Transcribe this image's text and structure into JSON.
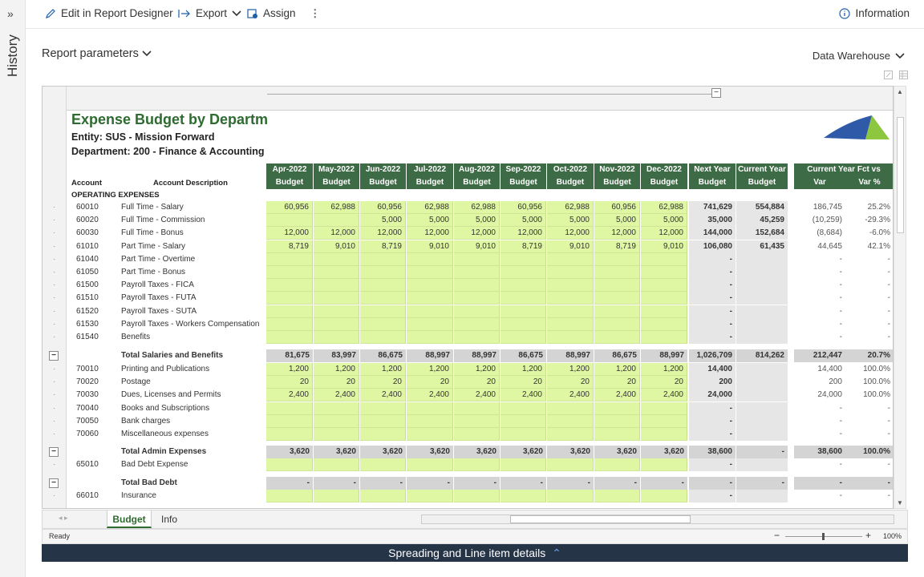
{
  "history": {
    "label": "History"
  },
  "toolbar": {
    "edit": "Edit in Report Designer",
    "export": "Export",
    "assign": "Assign",
    "information": "Information"
  },
  "params": {
    "label": "Report parameters"
  },
  "source": {
    "label": "Data Warehouse"
  },
  "report": {
    "title": "Expense Budget by Departmer",
    "entity": "Entity: SUS - Mission Forward",
    "department": "Department:  200 - Finance & Accounting",
    "months": [
      "Apr-2022",
      "May-2022",
      "Jun-2022",
      "Jul-2022",
      "Aug-2022",
      "Sep-2022",
      "Oct-2022",
      "Nov-2022",
      "Dec-2022"
    ],
    "sub_budget": "Budget",
    "next_year": "Next Year",
    "current_year": "Current Year",
    "fct_vs": "Current Year Fct vs Budget",
    "var": "Var",
    "varpct": "Var %",
    "account": "Account",
    "account_desc": "Account Description",
    "section": "OPERATING EXPENSES",
    "rows": [
      {
        "acct": "60010",
        "desc": "Full Time - Salary",
        "m": [
          "60,956",
          "62,988",
          "60,956",
          "62,988",
          "62,988",
          "60,956",
          "62,988",
          "60,956",
          "62,988"
        ],
        "ny": "741,629",
        "cy": "554,884",
        "v": "186,745",
        "vp": "25.2%"
      },
      {
        "acct": "60020",
        "desc": "Full Time - Commission",
        "m": [
          "",
          "",
          "5,000",
          "5,000",
          "5,000",
          "5,000",
          "5,000",
          "5,000",
          "5,000"
        ],
        "ny": "35,000",
        "cy": "45,259",
        "v": "(10,259)",
        "vp": "-29.3%"
      },
      {
        "acct": "60030",
        "desc": "Full Time - Bonus",
        "m": [
          "12,000",
          "12,000",
          "12,000",
          "12,000",
          "12,000",
          "12,000",
          "12,000",
          "12,000",
          "12,000"
        ],
        "ny": "144,000",
        "cy": "152,684",
        "v": "(8,684)",
        "vp": "-6.0%"
      },
      {
        "acct": "61010",
        "desc": "Part Time - Salary",
        "m": [
          "8,719",
          "9,010",
          "8,719",
          "9,010",
          "9,010",
          "8,719",
          "9,010",
          "8,719",
          "9,010"
        ],
        "ny": "106,080",
        "cy": "61,435",
        "v": "44,645",
        "vp": "42.1%"
      },
      {
        "acct": "61040",
        "desc": "Part Time - Overtime",
        "m": [
          "",
          "",
          "",
          "",
          "",
          "",
          "",
          "",
          ""
        ],
        "ny": "-",
        "cy": "",
        "v": "-",
        "vp": "-"
      },
      {
        "acct": "61050",
        "desc": "Part Time - Bonus",
        "m": [
          "",
          "",
          "",
          "",
          "",
          "",
          "",
          "",
          ""
        ],
        "ny": "-",
        "cy": "",
        "v": "-",
        "vp": "-"
      },
      {
        "acct": "61500",
        "desc": "Payroll Taxes - FICA",
        "m": [
          "",
          "",
          "",
          "",
          "",
          "",
          "",
          "",
          ""
        ],
        "ny": "-",
        "cy": "",
        "v": "-",
        "vp": "-"
      },
      {
        "acct": "61510",
        "desc": "Payroll Taxes - FUTA",
        "m": [
          "",
          "",
          "",
          "",
          "",
          "",
          "",
          "",
          ""
        ],
        "ny": "-",
        "cy": "",
        "v": "-",
        "vp": "-"
      },
      {
        "acct": "61520",
        "desc": "Payroll Taxes - SUTA",
        "m": [
          "",
          "",
          "",
          "",
          "",
          "",
          "",
          "",
          ""
        ],
        "ny": "-",
        "cy": "",
        "v": "-",
        "vp": "-"
      },
      {
        "acct": "61530",
        "desc": "Payroll Taxes - Workers Compensation",
        "m": [
          "",
          "",
          "",
          "",
          "",
          "",
          "",
          "",
          ""
        ],
        "ny": "-",
        "cy": "",
        "v": "-",
        "vp": "-"
      },
      {
        "acct": "61540",
        "desc": "Benefits",
        "m": [
          "",
          "",
          "",
          "",
          "",
          "",
          "",
          "",
          ""
        ],
        "ny": "-",
        "cy": "",
        "v": "-",
        "vp": "-"
      }
    ],
    "total_sal": {
      "desc": "Total Salaries and Benefits",
      "m": [
        "81,675",
        "83,997",
        "86,675",
        "88,997",
        "88,997",
        "86,675",
        "88,997",
        "86,675",
        "88,997"
      ],
      "ny": "1,026,709",
      "cy": "814,262",
      "v": "212,447",
      "vp": "20.7%"
    },
    "rows2": [
      {
        "acct": "70010",
        "desc": "Printing and Publications",
        "m": [
          "1,200",
          "1,200",
          "1,200",
          "1,200",
          "1,200",
          "1,200",
          "1,200",
          "1,200",
          "1,200"
        ],
        "ny": "14,400",
        "cy": "",
        "v": "14,400",
        "vp": "100.0%"
      },
      {
        "acct": "70020",
        "desc": "Postage",
        "m": [
          "20",
          "20",
          "20",
          "20",
          "20",
          "20",
          "20",
          "20",
          "20"
        ],
        "ny": "200",
        "cy": "",
        "v": "200",
        "vp": "100.0%"
      },
      {
        "acct": "70030",
        "desc": "Dues, Licenses and Permits",
        "m": [
          "2,400",
          "2,400",
          "2,400",
          "2,400",
          "2,400",
          "2,400",
          "2,400",
          "2,400",
          "2,400"
        ],
        "ny": "24,000",
        "cy": "",
        "v": "24,000",
        "vp": "100.0%"
      },
      {
        "acct": "70040",
        "desc": "Books and Subscriptions",
        "m": [
          "",
          "",
          "",
          "",
          "",
          "",
          "",
          "",
          ""
        ],
        "ny": "-",
        "cy": "",
        "v": "-",
        "vp": "-"
      },
      {
        "acct": "70050",
        "desc": "Bank charges",
        "m": [
          "",
          "",
          "",
          "",
          "",
          "",
          "",
          "",
          ""
        ],
        "ny": "-",
        "cy": "",
        "v": "-",
        "vp": "-"
      },
      {
        "acct": "70060",
        "desc": "Miscellaneous expenses",
        "m": [
          "",
          "",
          "",
          "",
          "",
          "",
          "",
          "",
          ""
        ],
        "ny": "-",
        "cy": "",
        "v": "-",
        "vp": "-"
      }
    ],
    "total_admin": {
      "desc": "Total Admin Expenses",
      "m": [
        "3,620",
        "3,620",
        "3,620",
        "3,620",
        "3,620",
        "3,620",
        "3,620",
        "3,620",
        "3,620"
      ],
      "ny": "38,600",
      "cy": "-",
      "v": "38,600",
      "vp": "100.0%"
    },
    "row_bad": {
      "acct": "65010",
      "desc": "Bad Debt Expense",
      "m": [
        "",
        "",
        "",
        "",
        "",
        "",
        "",
        "",
        ""
      ],
      "ny": "-",
      "cy": "",
      "v": "-",
      "vp": "-"
    },
    "total_bad": {
      "desc": "Total Bad Debt",
      "m": [
        "-",
        "-",
        "-",
        "-",
        "-",
        "-",
        "-",
        "-",
        "-"
      ],
      "ny": "-",
      "cy": "-",
      "v": "-",
      "vp": "-"
    },
    "row_ins": {
      "acct": "66010",
      "desc": "Insurance",
      "m": [
        "",
        "",
        "",
        "",
        "",
        "",
        "",
        "",
        ""
      ],
      "ny": "-",
      "cy": "",
      "v": "-",
      "vp": "-"
    }
  },
  "tabs": [
    "Budget",
    "Info"
  ],
  "status": {
    "ready": "Ready",
    "zoom": "100%"
  },
  "bottom": {
    "label": "Spreading and Line item details"
  }
}
